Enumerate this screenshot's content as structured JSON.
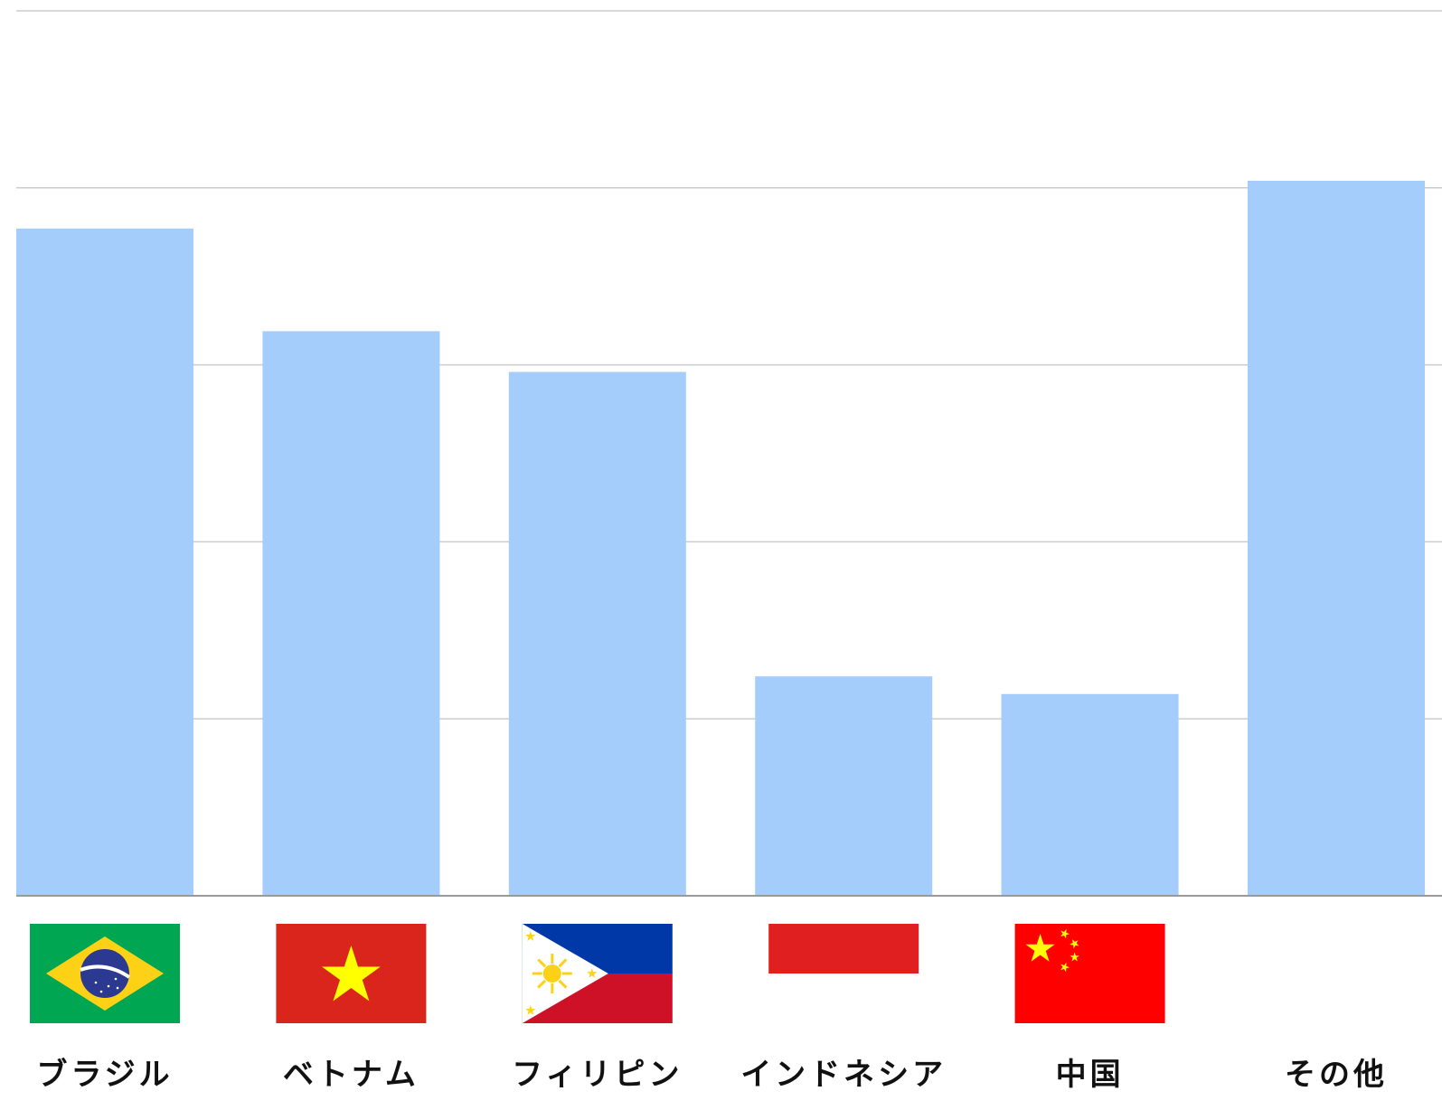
{
  "chart_data": {
    "type": "bar",
    "categories": [
      "ブラジル",
      "ベトナム",
      "フィリピン",
      "インドネシア",
      "中国",
      "その他"
    ],
    "values": [
      3.77,
      3.19,
      2.96,
      1.24,
      1.14,
      4.04
    ],
    "ylim": [
      0,
      5
    ],
    "grid": true,
    "bar_color": "#a5cdfb",
    "grid_color": "#cccccc",
    "axis_color": "#999999",
    "flags": [
      {
        "category": "ブラジル",
        "icon": "brazil-flag-icon",
        "colors": [
          "#00a651",
          "#fcd116",
          "#2b3990",
          "#ffffff"
        ]
      },
      {
        "category": "ベトナム",
        "icon": "vietnam-flag-icon",
        "colors": [
          "#da251d",
          "#ffff00"
        ]
      },
      {
        "category": "フィリピン",
        "icon": "philippines-flag-icon",
        "colors": [
          "#0038a8",
          "#ce1126",
          "#ffffff",
          "#fcd116"
        ]
      },
      {
        "category": "インドネシア",
        "icon": "indonesia-flag-icon",
        "colors": [
          "#e02020",
          "#ffffff"
        ]
      },
      {
        "category": "中国",
        "icon": "china-flag-icon",
        "colors": [
          "#ff0000",
          "#ffff00"
        ]
      },
      {
        "category": "その他",
        "icon": "",
        "colors": []
      }
    ]
  }
}
